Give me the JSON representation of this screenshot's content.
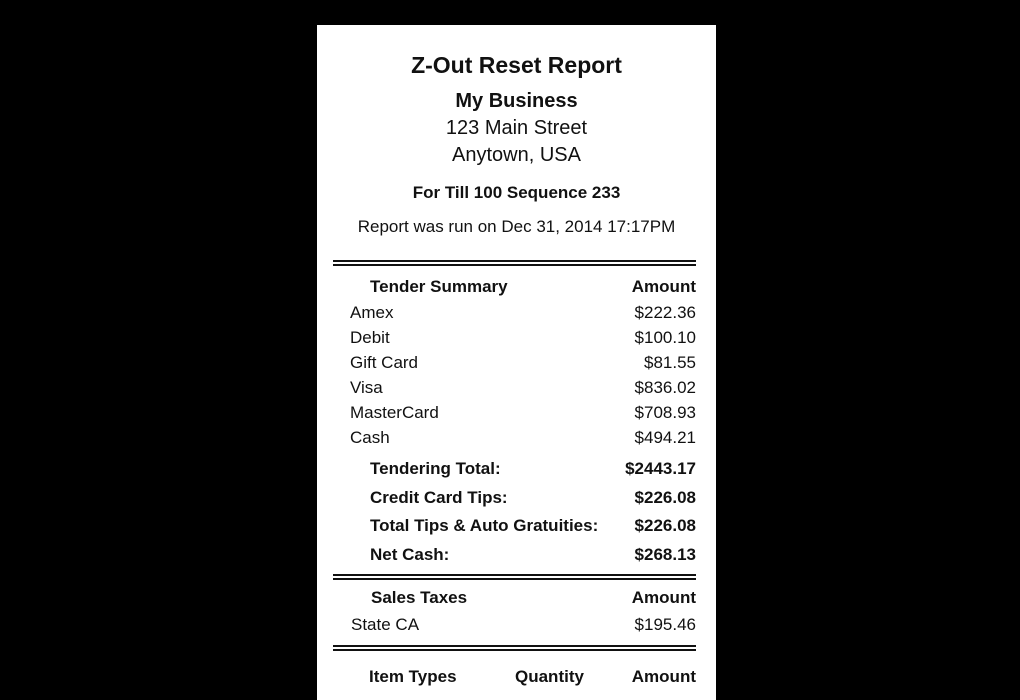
{
  "report": {
    "title": "Z-Out Reset Report",
    "business_name": "My Business",
    "address_line1": "123 Main Street",
    "address_line2": "Anytown, USA",
    "till_info": "For Till 100  Sequence 233",
    "run_info": "Report was run on Dec 31, 2014 17:17PM"
  },
  "tender_summary": {
    "header": "Tender Summary",
    "amount_header": "Amount",
    "rows": [
      {
        "label": "Amex",
        "amount": "$222.36"
      },
      {
        "label": "Debit",
        "amount": "$100.10"
      },
      {
        "label": "Gift Card",
        "amount": "$81.55"
      },
      {
        "label": "Visa",
        "amount": "$836.02"
      },
      {
        "label": "MasterCard",
        "amount": "$708.93"
      },
      {
        "label": "Cash",
        "amount": "$494.21"
      }
    ],
    "totals": [
      {
        "label": "Tendering Total:",
        "amount": "$2443.17"
      },
      {
        "label": "Credit Card Tips:",
        "amount": "$226.08"
      },
      {
        "label": "Total Tips & Auto Gratuities:",
        "amount": "$226.08"
      },
      {
        "label": "Net Cash:",
        "amount": "$268.13"
      }
    ]
  },
  "sales_taxes": {
    "header": "Sales Taxes",
    "amount_header": "Amount",
    "rows": [
      {
        "label": "State CA",
        "amount": "$195.46"
      }
    ]
  },
  "item_types": {
    "header": "Item Types",
    "quantity_header": "Quantity",
    "amount_header": "Amount"
  }
}
